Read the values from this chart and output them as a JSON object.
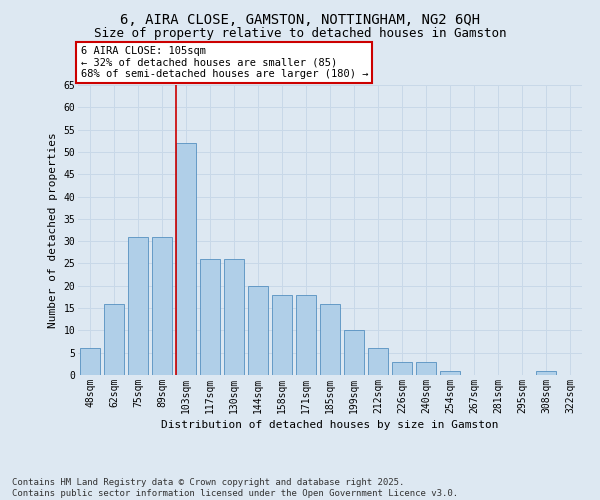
{
  "title_line1": "6, AIRA CLOSE, GAMSTON, NOTTINGHAM, NG2 6QH",
  "title_line2": "Size of property relative to detached houses in Gamston",
  "xlabel": "Distribution of detached houses by size in Gamston",
  "ylabel": "Number of detached properties",
  "categories": [
    "48sqm",
    "62sqm",
    "75sqm",
    "89sqm",
    "103sqm",
    "117sqm",
    "130sqm",
    "144sqm",
    "158sqm",
    "171sqm",
    "185sqm",
    "199sqm",
    "212sqm",
    "226sqm",
    "240sqm",
    "254sqm",
    "267sqm",
    "281sqm",
    "295sqm",
    "308sqm",
    "322sqm"
  ],
  "values": [
    6,
    16,
    31,
    31,
    52,
    26,
    26,
    20,
    18,
    18,
    16,
    10,
    6,
    3,
    3,
    1,
    0,
    0,
    0,
    1,
    0
  ],
  "bar_color": "#b0cfe8",
  "bar_edge_color": "#5590c0",
  "grid_color": "#c8d8e8",
  "bg_color": "#dde8f2",
  "annotation_text": "6 AIRA CLOSE: 105sqm\n← 32% of detached houses are smaller (85)\n68% of semi-detached houses are larger (180) →",
  "annotation_box_facecolor": "#ffffff",
  "annotation_box_edge": "#cc0000",
  "vline_color": "#cc0000",
  "vline_index": 4,
  "ylim": [
    0,
    65
  ],
  "yticks": [
    0,
    5,
    10,
    15,
    20,
    25,
    30,
    35,
    40,
    45,
    50,
    55,
    60,
    65
  ],
  "footer_text": "Contains HM Land Registry data © Crown copyright and database right 2025.\nContains public sector information licensed under the Open Government Licence v3.0.",
  "title_fontsize": 10,
  "subtitle_fontsize": 9,
  "axis_label_fontsize": 8,
  "tick_fontsize": 7,
  "annotation_fontsize": 7.5,
  "footer_fontsize": 6.5
}
